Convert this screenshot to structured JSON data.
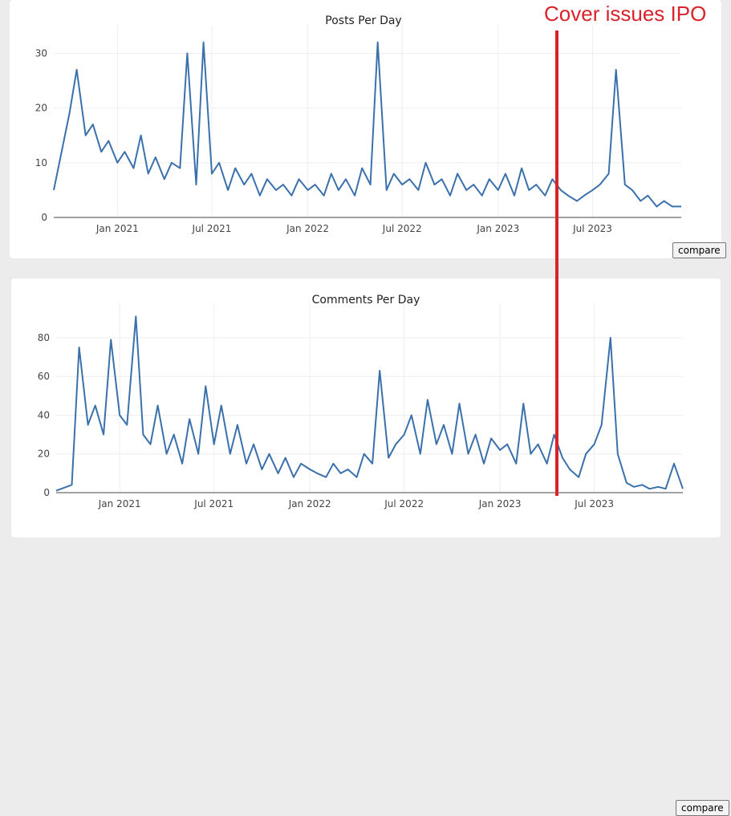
{
  "annotation": {
    "text": "Cover issues IPO",
    "color": "#d9232a"
  },
  "compare_label": "compare",
  "chart_data": [
    {
      "type": "line",
      "title": "Posts Per Day",
      "xlabel": "",
      "ylabel": "",
      "x_range": [
        "2020-09-01",
        "2023-12-18"
      ],
      "ylim": [
        0,
        33
      ],
      "yticks": [
        0,
        10,
        20,
        30
      ],
      "xticks": [
        "Jan 2021",
        "Jul 2021",
        "Jan 2022",
        "Jul 2022",
        "Jan 2023",
        "Jul 2023"
      ],
      "color": "#3a70ab",
      "series": [
        {
          "name": "posts",
          "x": [
            "2020-09-01",
            "2020-10-01",
            "2020-10-15",
            "2020-11-01",
            "2020-11-15",
            "2020-12-01",
            "2020-12-15",
            "2021-01-01",
            "2021-01-15",
            "2021-02-01",
            "2021-02-15",
            "2021-03-01",
            "2021-03-15",
            "2021-04-01",
            "2021-04-15",
            "2021-05-01",
            "2021-05-15",
            "2021-06-01",
            "2021-06-15",
            "2021-07-01",
            "2021-07-15",
            "2021-08-01",
            "2021-08-15",
            "2021-09-01",
            "2021-09-15",
            "2021-10-01",
            "2021-10-15",
            "2021-11-01",
            "2021-11-15",
            "2021-12-01",
            "2021-12-15",
            "2022-01-01",
            "2022-01-15",
            "2022-02-01",
            "2022-02-15",
            "2022-03-01",
            "2022-03-15",
            "2022-04-01",
            "2022-04-15",
            "2022-05-01",
            "2022-05-15",
            "2022-06-01",
            "2022-06-15",
            "2022-07-01",
            "2022-07-15",
            "2022-08-01",
            "2022-08-15",
            "2022-09-01",
            "2022-09-15",
            "2022-10-01",
            "2022-10-15",
            "2022-11-01",
            "2022-11-15",
            "2022-12-01",
            "2022-12-15",
            "2023-01-01",
            "2023-01-15",
            "2023-02-01",
            "2023-02-15",
            "2023-03-01",
            "2023-03-15",
            "2023-04-01",
            "2023-04-15",
            "2023-05-01",
            "2023-05-15",
            "2023-06-01",
            "2023-06-15",
            "2023-07-01",
            "2023-07-15",
            "2023-08-01",
            "2023-08-15",
            "2023-09-01",
            "2023-09-15",
            "2023-10-01",
            "2023-10-15",
            "2023-11-01",
            "2023-11-15",
            "2023-12-01",
            "2023-12-18"
          ],
          "values": [
            5,
            19,
            27,
            15,
            17,
            12,
            14,
            10,
            12,
            9,
            15,
            8,
            11,
            7,
            10,
            9,
            30,
            6,
            32,
            8,
            10,
            5,
            9,
            6,
            8,
            4,
            7,
            5,
            6,
            4,
            7,
            5,
            6,
            4,
            8,
            5,
            7,
            4,
            9,
            6,
            32,
            5,
            8,
            6,
            7,
            5,
            10,
            6,
            7,
            4,
            8,
            5,
            6,
            4,
            7,
            5,
            8,
            4,
            9,
            5,
            6,
            4,
            7,
            5,
            4,
            3,
            4,
            5,
            6,
            8,
            27,
            6,
            5,
            3,
            4,
            2,
            3,
            2,
            2
          ]
        }
      ]
    },
    {
      "type": "line",
      "title": "Comments Per Day",
      "xlabel": "",
      "ylabel": "",
      "x_range": [
        "2020-09-01",
        "2023-12-18"
      ],
      "ylim": [
        0,
        92
      ],
      "yticks": [
        0,
        20,
        40,
        60,
        80
      ],
      "xticks": [
        "Jan 2021",
        "Jul 2021",
        "Jan 2022",
        "Jul 2022",
        "Jan 2023",
        "Jul 2023"
      ],
      "color": "#3a70ab",
      "series": [
        {
          "name": "comments",
          "x": [
            "2020-09-01",
            "2020-10-01",
            "2020-10-15",
            "2020-11-01",
            "2020-11-15",
            "2020-12-01",
            "2020-12-15",
            "2021-01-01",
            "2021-01-15",
            "2021-02-01",
            "2021-02-15",
            "2021-03-01",
            "2021-03-15",
            "2021-04-01",
            "2021-04-15",
            "2021-05-01",
            "2021-05-15",
            "2021-06-01",
            "2021-06-15",
            "2021-07-01",
            "2021-07-15",
            "2021-08-01",
            "2021-08-15",
            "2021-09-01",
            "2021-09-15",
            "2021-10-01",
            "2021-10-15",
            "2021-11-01",
            "2021-11-15",
            "2021-12-01",
            "2021-12-15",
            "2022-01-01",
            "2022-01-15",
            "2022-02-01",
            "2022-02-15",
            "2022-03-01",
            "2022-03-15",
            "2022-04-01",
            "2022-04-15",
            "2022-05-01",
            "2022-05-15",
            "2022-06-01",
            "2022-06-15",
            "2022-07-01",
            "2022-07-15",
            "2022-08-01",
            "2022-08-15",
            "2022-09-01",
            "2022-09-15",
            "2022-10-01",
            "2022-10-15",
            "2022-11-01",
            "2022-11-15",
            "2022-12-01",
            "2022-12-15",
            "2023-01-01",
            "2023-01-15",
            "2023-02-01",
            "2023-02-15",
            "2023-03-01",
            "2023-03-15",
            "2023-04-01",
            "2023-04-15",
            "2023-05-01",
            "2023-05-15",
            "2023-06-01",
            "2023-06-15",
            "2023-07-01",
            "2023-07-15",
            "2023-08-01",
            "2023-08-15",
            "2023-09-01",
            "2023-09-15",
            "2023-10-01",
            "2023-10-15",
            "2023-11-01",
            "2023-11-15",
            "2023-12-01",
            "2023-12-18"
          ],
          "values": [
            1,
            4,
            75,
            35,
            45,
            30,
            79,
            40,
            35,
            91,
            30,
            25,
            45,
            20,
            30,
            15,
            38,
            20,
            55,
            25,
            45,
            20,
            35,
            15,
            25,
            12,
            20,
            10,
            18,
            8,
            15,
            12,
            10,
            8,
            15,
            10,
            12,
            8,
            20,
            15,
            63,
            18,
            25,
            30,
            40,
            20,
            48,
            25,
            35,
            20,
            46,
            20,
            30,
            15,
            28,
            22,
            25,
            15,
            46,
            20,
            25,
            15,
            30,
            18,
            12,
            8,
            20,
            25,
            35,
            80,
            20,
            5,
            3,
            4,
            2,
            3,
            2,
            15,
            2
          ]
        }
      ]
    }
  ]
}
